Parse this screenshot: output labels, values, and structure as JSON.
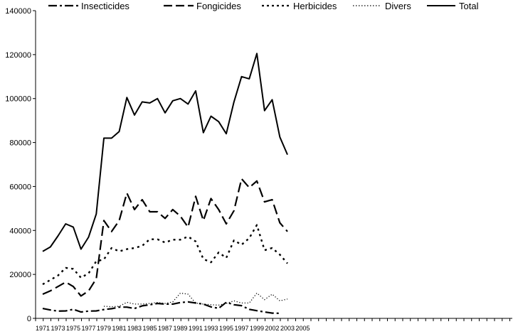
{
  "chart_data": {
    "type": "line",
    "title": "",
    "xlabel": "",
    "ylabel": "",
    "ylim": [
      0,
      140000
    ],
    "yticks": [
      0,
      20000,
      40000,
      60000,
      80000,
      100000,
      120000,
      140000
    ],
    "ytick_labels": [
      "0",
      "20000",
      "40000",
      "60000",
      "80000",
      "100000",
      "120000",
      "140000"
    ],
    "xtick_labels": [
      "1971",
      "1973",
      "1975",
      "1977",
      "1979",
      "1981",
      "1983",
      "1985",
      "1987",
      "1989",
      "1991",
      "1993",
      "1995",
      "1997",
      "1999",
      "2002",
      "2003",
      "2005"
    ],
    "grid": false,
    "legend_position": "top",
    "x": [
      "1971",
      "1972",
      "1973",
      "1974",
      "1975",
      "1976",
      "1977",
      "1978",
      "1979",
      "1980",
      "1981",
      "1982",
      "1983",
      "1984",
      "1985",
      "1986",
      "1987",
      "1988",
      "1989",
      "1990",
      "1991",
      "1992",
      "1993",
      "1994",
      "1995",
      "1996",
      "1997",
      "1998",
      "1999",
      "2001",
      "2002",
      "2003",
      "2003"
    ],
    "series": [
      {
        "name": "Insecticides",
        "style": "dashdot",
        "values": [
          4500,
          3800,
          3300,
          3400,
          4100,
          2900,
          3300,
          3400,
          4000,
          4400,
          5100,
          5100,
          4500,
          5700,
          6200,
          6800,
          6500,
          6500,
          7200,
          7500,
          7000,
          6500,
          5200,
          4600,
          7300,
          6200,
          5800,
          4100,
          3500,
          2900,
          2400,
          2300,
          null
        ]
      },
      {
        "name": "Fongicides",
        "style": "longdash",
        "values": [
          11000,
          12500,
          14500,
          16500,
          14500,
          10200,
          12500,
          18000,
          44500,
          39500,
          44500,
          57000,
          49500,
          54000,
          48500,
          48500,
          45500,
          49500,
          46500,
          41500,
          55500,
          44500,
          54500,
          49500,
          43000,
          49000,
          63500,
          59500,
          62500,
          53000,
          54000,
          43500,
          39500
        ]
      },
      {
        "name": "Herbicides",
        "style": "dashed",
        "values": [
          15500,
          17500,
          19500,
          23000,
          22500,
          18500,
          20500,
          26000,
          26800,
          32000,
          30500,
          31500,
          32000,
          33000,
          36000,
          36000,
          34500,
          35800,
          35800,
          37200,
          35000,
          27000,
          25500,
          30000,
          27500,
          35500,
          33500,
          36500,
          42500,
          31000,
          32000,
          29000,
          25000
        ]
      },
      {
        "name": "Divers",
        "style": "dotted",
        "values": [
          null,
          null,
          null,
          null,
          null,
          null,
          null,
          null,
          5500,
          5300,
          5500,
          7300,
          6500,
          6500,
          6800,
          7200,
          6800,
          7500,
          11500,
          11000,
          7000,
          6500,
          6200,
          6000,
          6800,
          8000,
          7000,
          7000,
          11500,
          8500,
          11000,
          8000,
          8800
        ]
      },
      {
        "name": "Total",
        "style": "solid",
        "values": [
          30500,
          32500,
          37500,
          43000,
          41500,
          31500,
          37000,
          47500,
          82000,
          82000,
          85000,
          100500,
          92500,
          98500,
          98000,
          100000,
          93500,
          99000,
          100000,
          97500,
          103500,
          84500,
          92000,
          89500,
          84000,
          98500,
          110000,
          109000,
          120500,
          94500,
          99500,
          82500,
          74500
        ]
      }
    ]
  }
}
